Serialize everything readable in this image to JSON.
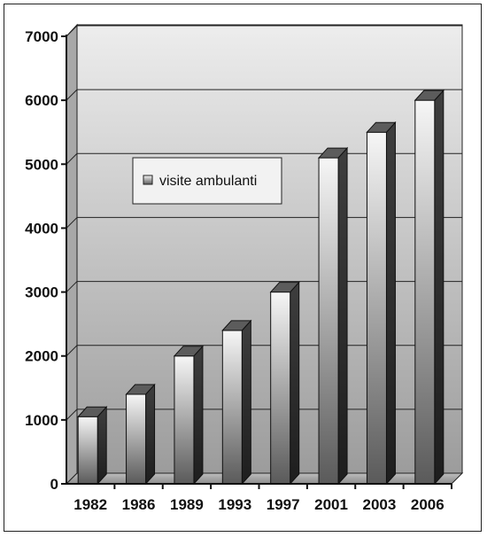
{
  "chart_data": {
    "type": "bar",
    "categories": [
      "1982",
      "1986",
      "1989",
      "1993",
      "1997",
      "2001",
      "2003",
      "2006"
    ],
    "series": [
      {
        "name": "visite ambulanti",
        "values": [
          1050,
          1400,
          2000,
          2400,
          3000,
          5100,
          5500,
          6000
        ]
      }
    ],
    "yticks": [
      0,
      1000,
      2000,
      3000,
      4000,
      5000,
      6000,
      7000
    ],
    "ylim": [
      0,
      7000
    ],
    "grid": true,
    "legend": "upper-left",
    "colors": {
      "bar_front_dark": "#555555",
      "bar_front_light": "#f4f4f4",
      "bar_side": "#3a3a3a",
      "bar_top": "#5a5a5a",
      "wall_top": "#e8e8e8",
      "wall_bottom": "#9a9a9a"
    }
  }
}
